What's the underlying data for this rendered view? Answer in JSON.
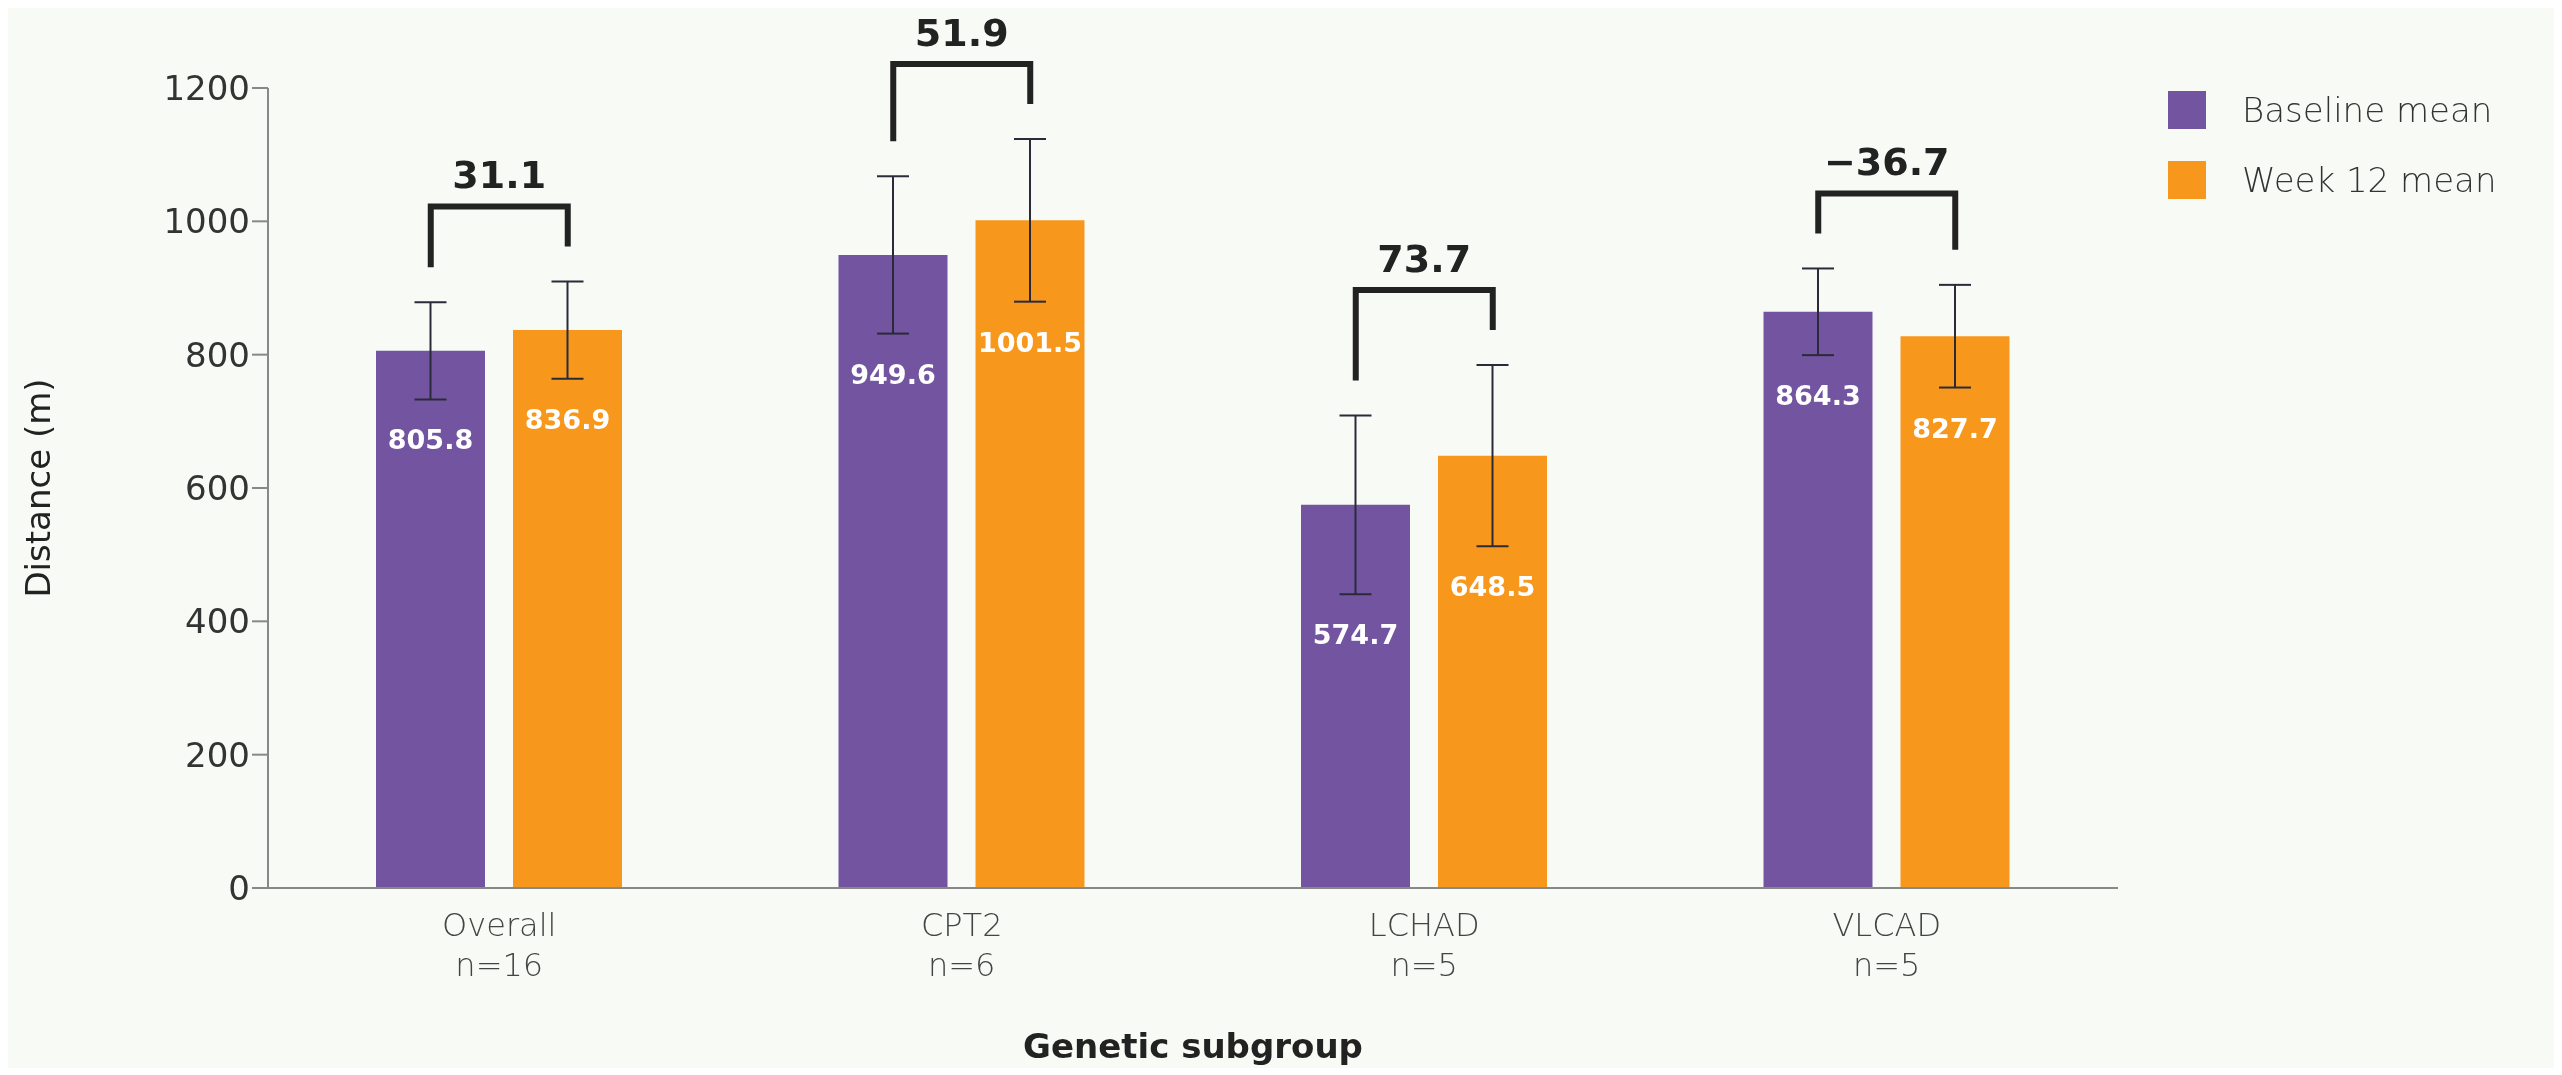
{
  "chart_data": {
    "type": "bar",
    "categories": [
      "Overall\nn=16",
      "CPT2\nn=6",
      "LCHAD\nn=5",
      "VLCAD\nn=5"
    ],
    "series": [
      {
        "name": "Baseline mean",
        "color": "#7254a0",
        "values": [
          805.8,
          949.6,
          574.7,
          864.3
        ],
        "errors": [
          73,
          118,
          134,
          65
        ]
      },
      {
        "name": "Week 12 mean",
        "color": "#f7981d",
        "values": [
          836.9,
          1001.5,
          648.5,
          827.7
        ],
        "errors": [
          73,
          122,
          136,
          77
        ]
      }
    ],
    "xlabel": "Genetic subgroup",
    "ylabel": "Distance (m)",
    "ylim": [
      0,
      1200
    ],
    "yticks": [
      0,
      200,
      400,
      600,
      800,
      1000,
      1200
    ],
    "annotations": [
      "31.1",
      "51.9",
      "73.7",
      "−36.7"
    ],
    "data_labels": true,
    "grid": false,
    "legend": "top right"
  }
}
